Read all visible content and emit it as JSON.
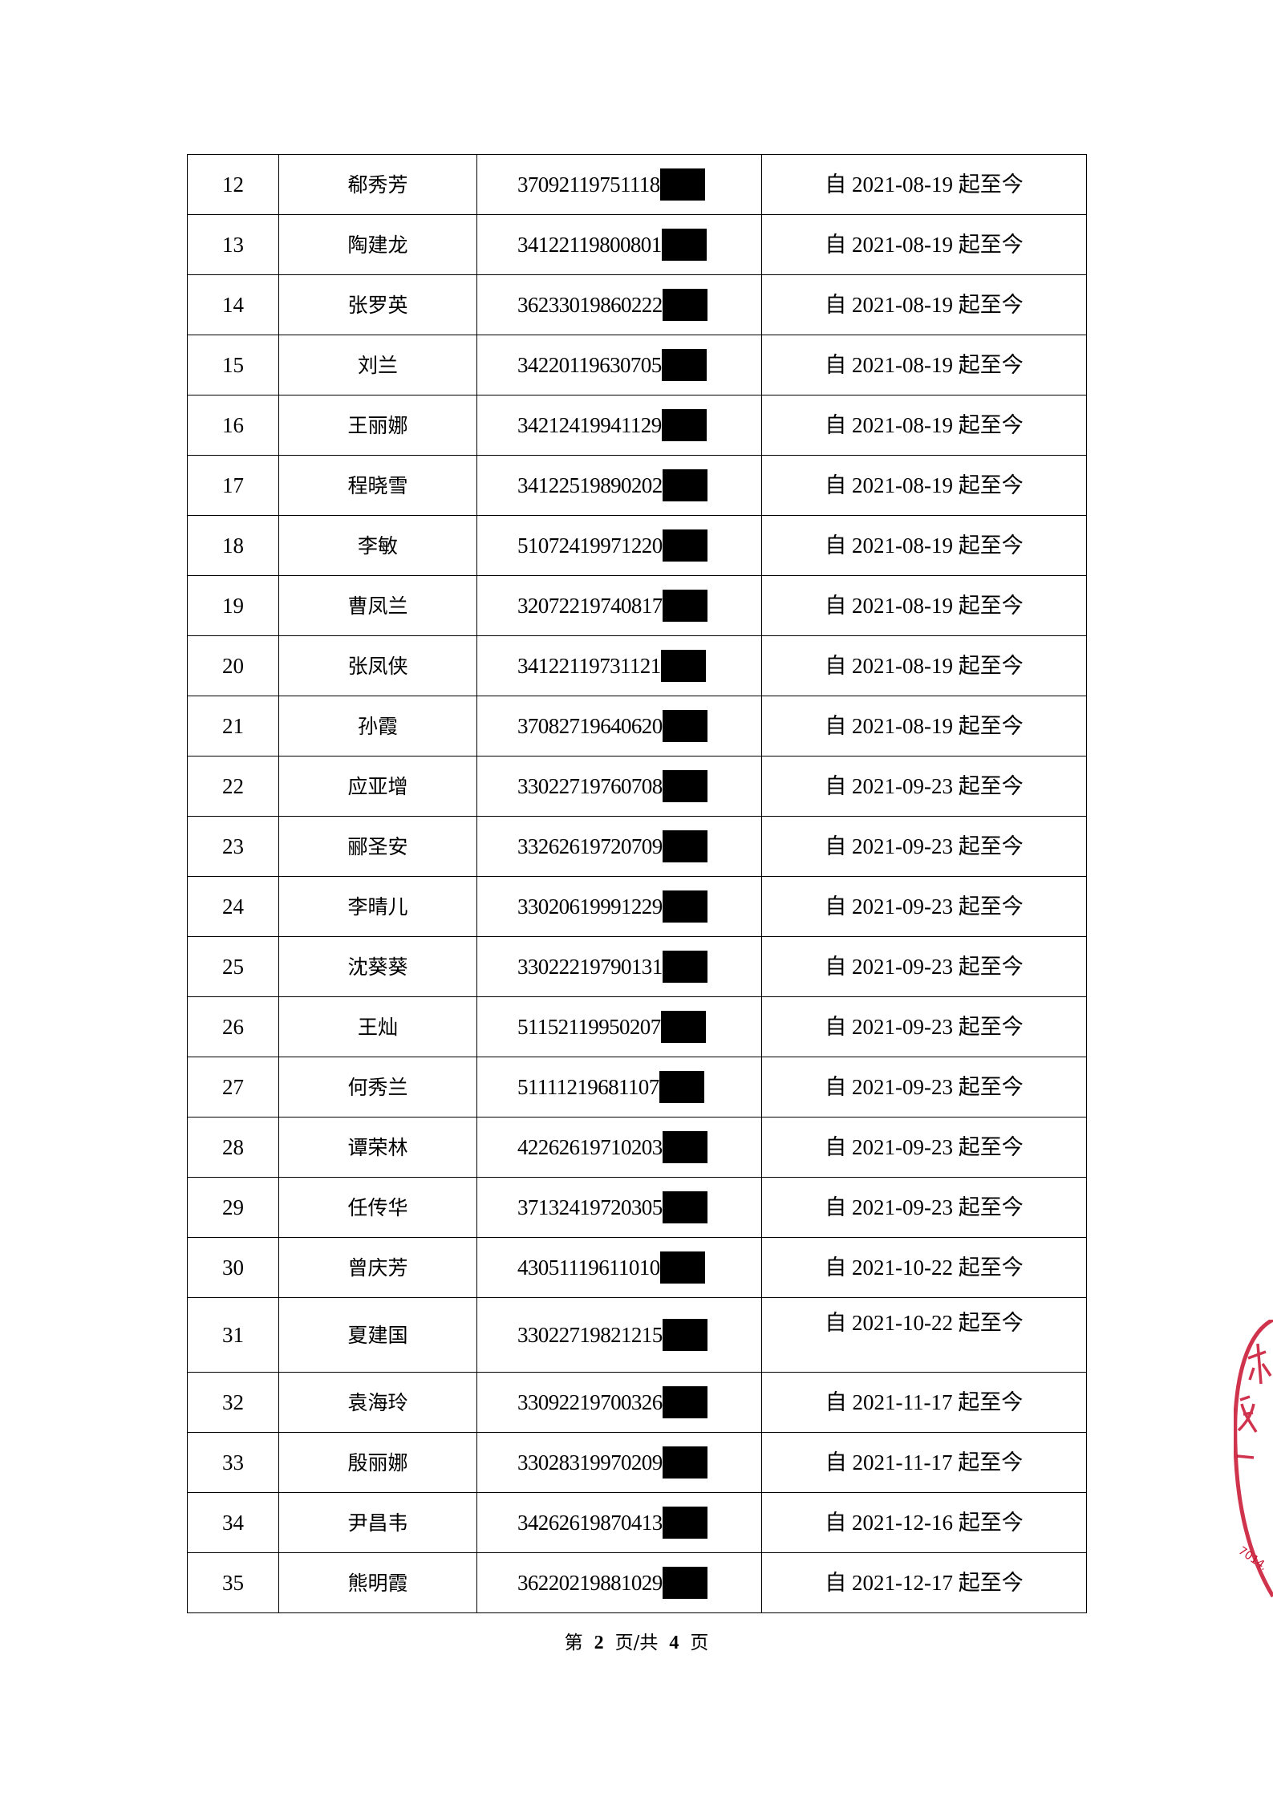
{
  "rows": [
    {
      "no": "12",
      "name": "郗秀芳",
      "id": "37092119751118",
      "period": "自 2021-08-19 起至今"
    },
    {
      "no": "13",
      "name": "陶建龙",
      "id": "34122119800801",
      "period": "自 2021-08-19 起至今"
    },
    {
      "no": "14",
      "name": "张罗英",
      "id": "36233019860222",
      "period": "自 2021-08-19 起至今"
    },
    {
      "no": "15",
      "name": "刘兰",
      "id": "34220119630705",
      "period": "自 2021-08-19 起至今"
    },
    {
      "no": "16",
      "name": "王丽娜",
      "id": "34212419941129",
      "period": "自 2021-08-19 起至今"
    },
    {
      "no": "17",
      "name": "程晓雪",
      "id": "34122519890202",
      "period": "自 2021-08-19 起至今"
    },
    {
      "no": "18",
      "name": "李敏",
      "id": "51072419971220",
      "period": "自 2021-08-19 起至今"
    },
    {
      "no": "19",
      "name": "曹凤兰",
      "id": "32072219740817",
      "period": "自 2021-08-19 起至今"
    },
    {
      "no": "20",
      "name": "张凤侠",
      "id": "34122119731121",
      "period": "自 2021-08-19 起至今"
    },
    {
      "no": "21",
      "name": "孙霞",
      "id": "37082719640620",
      "period": "自 2021-08-19 起至今"
    },
    {
      "no": "22",
      "name": "应亚增",
      "id": "33022719760708",
      "period": "自 2021-09-23 起至今"
    },
    {
      "no": "23",
      "name": "郦圣安",
      "id": "33262619720709",
      "period": "自 2021-09-23 起至今"
    },
    {
      "no": "24",
      "name": "李晴儿",
      "id": "33020619991229",
      "period": "自 2021-09-23 起至今"
    },
    {
      "no": "25",
      "name": "沈葵葵",
      "id": "33022219790131",
      "period": "自 2021-09-23 起至今"
    },
    {
      "no": "26",
      "name": "王灿",
      "id": "51152119950207",
      "period": "自 2021-09-23 起至今"
    },
    {
      "no": "27",
      "name": "何秀兰",
      "id": "51111219681107",
      "period": "自 2021-09-23 起至今"
    },
    {
      "no": "28",
      "name": "谭荣林",
      "id": "42262619710203",
      "period": "自 2021-09-23 起至今"
    },
    {
      "no": "29",
      "name": "任传华",
      "id": "37132419720305",
      "period": "自 2021-09-23 起至今"
    },
    {
      "no": "30",
      "name": "曾庆芳",
      "id": "43051119611010",
      "period": "自 2021-10-22 起至今"
    },
    {
      "no": "31",
      "name": "夏建国",
      "id": "33022719821215",
      "period": "自 2021-10-22 起至今"
    },
    {
      "no": "32",
      "name": "袁海玲",
      "id": "33092219700326",
      "period": "自 2021-11-17 起至今"
    },
    {
      "no": "33",
      "name": "殷丽娜",
      "id": "33028319970209",
      "period": "自 2021-11-17 起至今"
    },
    {
      "no": "34",
      "name": "尹昌韦",
      "id": "34262619870413",
      "period": "自 2021-12-16 起至今"
    },
    {
      "no": "35",
      "name": "熊明霞",
      "id": "36220219881029",
      "period": "自 2021-12-17 起至今"
    }
  ],
  "footer": {
    "prefix": "第",
    "page": "2",
    "middle": "页/共",
    "total": "4",
    "suffix": "页"
  },
  "stamp": {
    "color": "#c8102e",
    "visible_text": "…皮木…  …014…"
  },
  "redaction_color": "#000000"
}
